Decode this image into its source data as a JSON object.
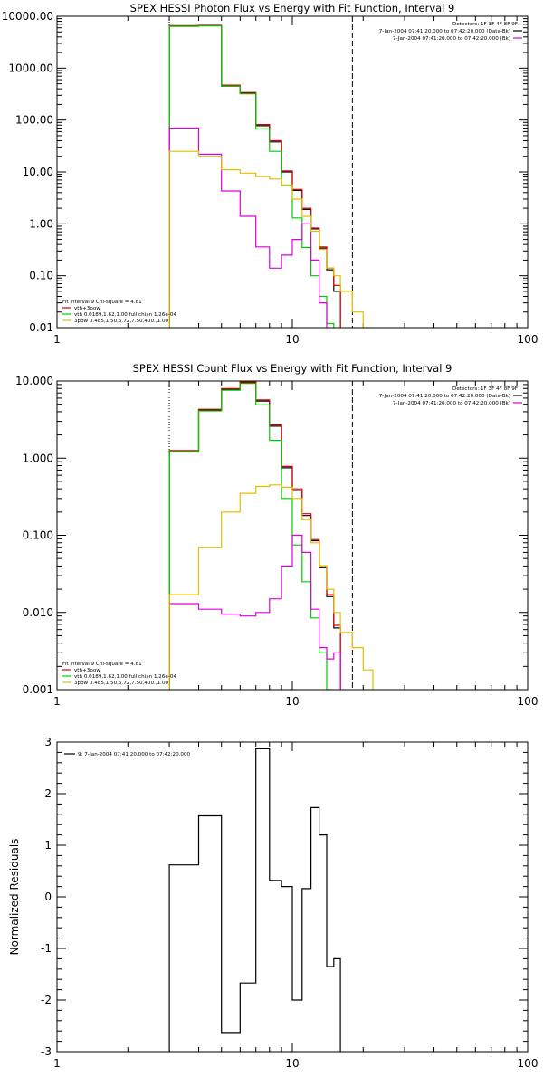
{
  "chart_data": [
    {
      "type": "line",
      "step": true,
      "title": "SPEX HESSI Photon Flux vs Energy with Fit Function, Interval 9",
      "xlabel": "",
      "ylabel": "",
      "xlog": true,
      "ylog": true,
      "xlim": [
        1,
        100
      ],
      "ylim": [
        0.01,
        10000
      ],
      "x_ticks": [
        "1",
        "10",
        "100"
      ],
      "y_ticks": [
        "0.01",
        "0.10",
        "1.00",
        "10.00",
        "100.00",
        "1000.00",
        "10000.00"
      ],
      "edges": [
        3,
        4,
        5,
        6,
        7,
        8,
        9,
        10,
        11,
        12,
        13,
        14,
        15,
        16,
        18,
        20,
        22
      ],
      "series": [
        {
          "color": "#000000",
          "values": [
            6500,
            6600,
            450,
            330,
            78,
            38,
            10,
            4.4,
            1.9,
            0.8,
            0.34,
            0.13,
            0.05,
            null,
            null,
            null
          ]
        },
        {
          "color": "#dd0000",
          "values": [
            6600,
            6700,
            470,
            340,
            82,
            40,
            10.5,
            4.6,
            2.0,
            0.83,
            0.36,
            0.14,
            0.065,
            null,
            null,
            null
          ]
        },
        {
          "color": "#00cc00",
          "values": [
            6400,
            6500,
            450,
            320,
            68,
            25,
            5.5,
            1.3,
            0.35,
            0.1,
            0.04,
            0.012,
            null,
            null,
            null,
            null
          ]
        },
        {
          "color": "#dd00dd",
          "values": [
            70,
            22,
            4.3,
            1.4,
            0.36,
            0.14,
            0.25,
            0.5,
            1.0,
            0.2,
            0.03,
            null,
            null,
            null,
            null,
            null
          ]
        },
        {
          "color": "#e0c000",
          "values": [
            25,
            20,
            11,
            9.5,
            8.1,
            7.3,
            5.6,
            3.0,
            1.4,
            0.72,
            0.32,
            0.14,
            0.1,
            0.05,
            0.02,
            0.01
          ]
        }
      ],
      "legend_tr": {
        "header": "Detectors: 1F 3F 4F 8F 9F",
        "entries": [
          {
            "label": "7-Jan-2004 07:41:20.000 to 07:42:20.000 (Data-Bk)",
            "color": "#000000"
          },
          {
            "label": "7-Jan-2004 07:41:20.000 to 07:42:20.000 (Bk)",
            "color": "#dd00dd"
          }
        ]
      },
      "legend_bl": {
        "header": "Fit Interval 9   Chi-square = 4.81",
        "entries": [
          {
            "label": "vth+3pow",
            "color": "#dd0000"
          },
          {
            "label": "vth 0.0189,1.62,1.00  full chian 1.26e-04",
            "color": "#00cc00"
          },
          {
            "label": "3pow 0.485,1.50,6.72,7.50,400.,1.00",
            "color": "#e0c000"
          }
        ]
      },
      "vlines": [
        {
          "x": 3,
          "style": "dotted"
        },
        {
          "x": 18,
          "style": "dashed"
        }
      ]
    },
    {
      "type": "line",
      "step": true,
      "title": "SPEX HESSI Count Flux vs Energy with Fit Function, Interval 9",
      "xlabel": "",
      "ylabel": "",
      "xlog": true,
      "ylog": true,
      "xlim": [
        1,
        100
      ],
      "ylim": [
        0.001,
        10
      ],
      "x_ticks": [
        "1",
        "10",
        "100"
      ],
      "y_ticks": [
        "0.001",
        "0.010",
        "0.100",
        "1.000",
        "10.000"
      ],
      "edges": [
        3,
        4,
        5,
        6,
        7,
        8,
        9,
        10,
        11,
        12,
        13,
        14,
        15,
        16,
        18,
        20,
        22
      ],
      "series": [
        {
          "color": "#000000",
          "values": [
            1.25,
            4.2,
            7.8,
            9.5,
            5.5,
            2.6,
            0.75,
            0.38,
            0.18,
            0.085,
            0.038,
            0.016,
            0.0063,
            null,
            null,
            null
          ]
        },
        {
          "color": "#dd0000",
          "values": [
            1.25,
            4.3,
            8.0,
            9.7,
            5.7,
            2.7,
            0.78,
            0.4,
            0.19,
            0.088,
            0.04,
            0.017,
            0.0068,
            null,
            null,
            null
          ]
        },
        {
          "color": "#00cc00",
          "values": [
            1.2,
            4.1,
            7.6,
            9.3,
            4.9,
            1.7,
            0.3,
            0.075,
            0.025,
            0.0085,
            0.003,
            0.001,
            null,
            null,
            null,
            null
          ]
        },
        {
          "color": "#dd00dd",
          "values": [
            0.013,
            0.011,
            0.0095,
            0.009,
            0.01,
            0.015,
            0.04,
            0.1,
            0.06,
            0.011,
            0.0035,
            0.0025,
            0.003,
            null,
            null,
            null
          ]
        },
        {
          "color": "#e0c000",
          "values": [
            0.017,
            0.07,
            0.2,
            0.35,
            0.43,
            0.45,
            0.42,
            0.3,
            0.16,
            0.08,
            0.04,
            0.02,
            0.01,
            0.0055,
            0.0035,
            0.0018
          ]
        }
      ],
      "legend_tr": {
        "header": "Detectors: 1F 3F 4F 8F 9F",
        "entries": [
          {
            "label": "7-Jan-2004 07:41:20.000 to 07:42:20.000 (Data-Bk)",
            "color": "#000000"
          },
          {
            "label": "7-Jan-2004 07:41:20.000 to 07:42:20.000 (Bk)",
            "color": "#dd00dd"
          }
        ]
      },
      "legend_bl": {
        "header": "Fit Interval 9   Chi-square = 4.81",
        "entries": [
          {
            "label": "vth+3pow",
            "color": "#dd0000"
          },
          {
            "label": "vth 0.0189,1.62,1.00  full chian 1.26e-04",
            "color": "#00cc00"
          },
          {
            "label": "3pow 0.485,1.50,6.72,7.50,400.,1.00",
            "color": "#e0c000"
          }
        ]
      },
      "vlines": [
        {
          "x": 3,
          "style": "dotted"
        },
        {
          "x": 18,
          "style": "dashed"
        }
      ]
    },
    {
      "type": "line",
      "step": true,
      "title": "",
      "xlabel": "",
      "ylabel": "Normalized Residuals",
      "xlog": true,
      "ylog": false,
      "xlim": [
        1,
        100
      ],
      "ylim": [
        -3,
        3
      ],
      "x_ticks": [
        "1",
        "10",
        "100"
      ],
      "y_ticks": [
        "-3",
        "-2",
        "-1",
        "0",
        "1",
        "2",
        "3"
      ],
      "edges": [
        3,
        4,
        5,
        6,
        7,
        8,
        9,
        10,
        11,
        12,
        13,
        14,
        15,
        16,
        18
      ],
      "series": [
        {
          "color": "#000000",
          "values": [
            0.62,
            1.57,
            -2.63,
            -1.67,
            2.87,
            0.32,
            0.2,
            -2.0,
            0.16,
            1.73,
            1.2,
            -1.35,
            -1.2
          ]
        }
      ],
      "legend_tl": {
        "entries": [
          {
            "label": "9: 7-Jan-2004 07:41:20.000 to 07:42:20.000",
            "color": "#000000"
          }
        ]
      }
    }
  ]
}
